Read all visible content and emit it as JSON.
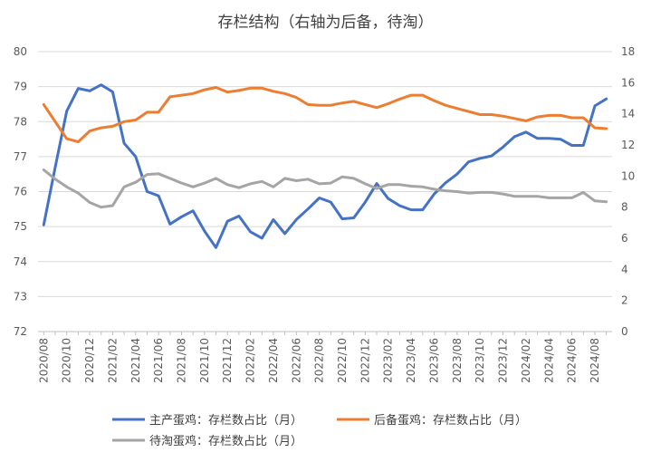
{
  "chart_data": {
    "type": "line",
    "title": "存栏结构（右轴为后备，待淘）",
    "x": [
      "2020/08",
      "2020/09",
      "2020/10",
      "2020/11",
      "2020/12",
      "2021/01",
      "2021/02",
      "2021/03",
      "2021/04",
      "2021/05",
      "2021/06",
      "2021/07",
      "2021/08",
      "2021/09",
      "2021/10",
      "2021/11",
      "2021/12",
      "2022/01",
      "2022/02",
      "2022/03",
      "2022/04",
      "2022/05",
      "2022/06",
      "2022/07",
      "2022/08",
      "2022/09",
      "2022/10",
      "2022/11",
      "2022/12",
      "2023/01",
      "2023/02",
      "2023/03",
      "2023/04",
      "2023/05",
      "2023/06",
      "2023/07",
      "2023/08",
      "2023/09",
      "2023/10",
      "2023/11",
      "2023/12",
      "2024/01",
      "2024/02",
      "2024/03",
      "2024/04",
      "2024/05",
      "2024/06",
      "2024/07",
      "2024/08",
      "2024/09"
    ],
    "x_tick_labels": [
      "2020/08",
      "2020/10",
      "2020/12",
      "2021/02",
      "2021/04",
      "2021/06",
      "2021/08",
      "2021/10",
      "2021/12",
      "2022/02",
      "2022/04",
      "2022/06",
      "2022/08",
      "2022/10",
      "2022/12",
      "2023/02",
      "2023/04",
      "2023/06",
      "2023/08",
      "2023/10",
      "2023/12",
      "2024/02",
      "2024/04",
      "2024/06",
      "2024/08"
    ],
    "y_left": {
      "min": 72,
      "max": 80,
      "ticks": [
        72,
        73,
        74,
        75,
        76,
        77,
        78,
        79,
        80
      ]
    },
    "y_right": {
      "min": 0,
      "max": 18,
      "ticks": [
        0,
        2,
        4,
        6,
        8,
        10,
        12,
        14,
        16,
        18
      ]
    },
    "grid": true,
    "legend_position": "bottom",
    "series": [
      {
        "name": "主产蛋鸡：存栏数占比（月）",
        "axis": "left",
        "color": "#4472C4",
        "values": [
          75.05,
          76.7,
          78.3,
          78.95,
          78.88,
          79.05,
          78.85,
          77.38,
          77.0,
          76.0,
          75.88,
          75.07,
          75.28,
          75.45,
          74.87,
          74.4,
          75.15,
          75.3,
          74.85,
          74.67,
          75.2,
          74.8,
          75.2,
          75.5,
          75.82,
          75.7,
          75.22,
          75.25,
          75.7,
          76.23,
          75.8,
          75.6,
          75.48,
          75.48,
          75.93,
          76.25,
          76.5,
          76.85,
          76.95,
          77.02,
          77.27,
          77.57,
          77.7,
          77.52,
          77.52,
          77.5,
          77.32,
          77.32,
          78.45,
          78.65
        ]
      },
      {
        "name": "后备蛋鸡：存栏数占比（月）",
        "axis": "right",
        "color": "#ED7D31",
        "values": [
          14.6,
          13.5,
          12.4,
          12.2,
          12.9,
          13.1,
          13.2,
          13.5,
          13.6,
          14.1,
          14.1,
          15.1,
          15.2,
          15.3,
          15.55,
          15.7,
          15.4,
          15.5,
          15.65,
          15.65,
          15.45,
          15.3,
          15.05,
          14.6,
          14.55,
          14.55,
          14.7,
          14.8,
          14.6,
          14.4,
          14.65,
          14.95,
          15.2,
          15.2,
          14.85,
          14.55,
          14.35,
          14.15,
          13.95,
          13.95,
          13.85,
          13.7,
          13.55,
          13.8,
          13.9,
          13.9,
          13.75,
          13.75,
          13.1,
          13.05
        ]
      },
      {
        "name": "待淘蛋鸡：存栏数占比（月）",
        "axis": "right",
        "color": "#A5A5A5",
        "values": [
          10.4,
          9.8,
          9.3,
          8.9,
          8.3,
          8.0,
          8.1,
          9.3,
          9.6,
          10.1,
          10.15,
          9.85,
          9.55,
          9.3,
          9.55,
          9.85,
          9.45,
          9.25,
          9.5,
          9.65,
          9.3,
          9.85,
          9.7,
          9.8,
          9.5,
          9.55,
          9.95,
          9.85,
          9.5,
          9.2,
          9.45,
          9.45,
          9.35,
          9.3,
          9.15,
          9.05,
          9.0,
          8.9,
          8.95,
          8.95,
          8.85,
          8.7,
          8.7,
          8.7,
          8.6,
          8.6,
          8.6,
          8.95,
          8.4,
          8.35
        ]
      }
    ]
  }
}
